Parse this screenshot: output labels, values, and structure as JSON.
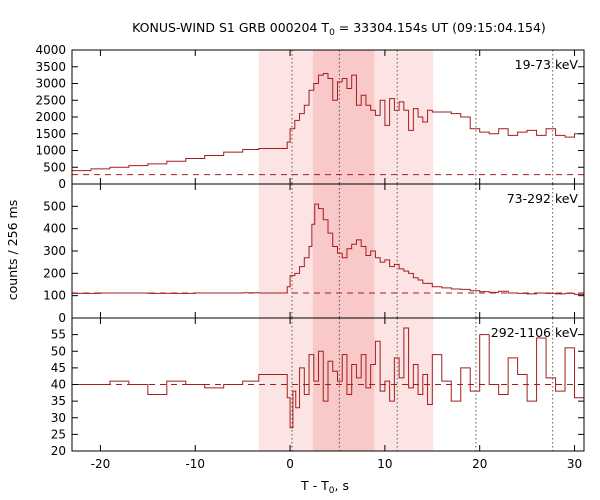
{
  "chart_data": {
    "type": "line",
    "title": "KONUS-WIND S1 GRB 000204 T",
    "title_sub": "0",
    "title_rest": " = 33304.154s UT (09:15:04.154)",
    "xlabel": "T - T",
    "xlabel_sub": "0",
    "xlabel_rest": ", s",
    "ylabel": "counts / 256 ms",
    "xlim": [
      -23,
      31
    ],
    "x_ticks": [
      -20,
      -10,
      0,
      10,
      20,
      30
    ],
    "x_tick_labels": [
      "-20",
      "-10",
      "0",
      "10",
      "20",
      "30"
    ],
    "colors": {
      "series": "#a51c1c",
      "band_outer": "#fde4e4",
      "band_inner": "#f9c9c9"
    },
    "shaded_intervals": [
      {
        "x0": -3.3,
        "x1": 2.4,
        "level": "outer"
      },
      {
        "x0": 2.4,
        "x1": 8.9,
        "level": "inner"
      },
      {
        "x0": 8.9,
        "x1": 15.1,
        "level": "outer"
      }
    ],
    "vertical_markers": [
      0.2,
      5.2,
      11.3,
      19.6,
      27.7
    ],
    "panels": [
      {
        "band_label": "19-73 keV",
        "ylim": [
          0,
          4000
        ],
        "y_ticks": [
          0,
          500,
          1000,
          1500,
          2000,
          2500,
          3000,
          3500,
          4000
        ],
        "y_tick_labels": [
          "0",
          "500",
          "1000",
          "1500",
          "2000",
          "2500",
          "3000",
          "3500",
          "4000"
        ],
        "background_level": 280,
        "series": {
          "x": [
            -23,
            -21,
            -19,
            -17,
            -15,
            -13,
            -11,
            -9,
            -7,
            -5,
            -3.3,
            -0.3,
            0,
            0.5,
            1,
            1.5,
            2,
            2.5,
            3,
            3.5,
            4,
            4.5,
            5,
            5.5,
            6,
            6.5,
            7,
            7.5,
            8,
            8.5,
            9,
            9.5,
            10,
            10.5,
            11,
            11.5,
            12,
            12.5,
            13,
            13.5,
            14,
            14.5,
            15,
            16,
            17,
            18,
            19,
            20,
            21,
            22,
            23,
            24,
            25,
            26,
            27,
            28,
            29,
            30,
            31
          ],
          "y": [
            400,
            450,
            500,
            550,
            600,
            680,
            760,
            850,
            950,
            1030,
            1060,
            1250,
            1650,
            1900,
            2100,
            2350,
            2800,
            3000,
            3250,
            3300,
            3150,
            2500,
            3050,
            3150,
            2850,
            3250,
            2350,
            2650,
            2350,
            2200,
            2050,
            2500,
            1750,
            2550,
            2200,
            2450,
            2200,
            1600,
            2250,
            2000,
            1850,
            2200,
            2150,
            2150,
            2100,
            2000,
            1650,
            1550,
            1500,
            1650,
            1450,
            1550,
            1600,
            1450,
            1650,
            1450,
            1400,
            1500,
            1400
          ]
        }
      },
      {
        "band_label": "73-292 keV",
        "ylim": [
          0,
          600
        ],
        "y_ticks": [
          0,
          100,
          200,
          300,
          400,
          500
        ],
        "y_tick_labels": [
          "0",
          "100",
          "200",
          "300",
          "400",
          "500"
        ],
        "background_level": 112,
        "series": {
          "x": [
            -23,
            -20,
            -15,
            -10,
            -5,
            -3.3,
            -0.3,
            0,
            0.5,
            1,
            1.5,
            2,
            2.3,
            2.6,
            3,
            3.5,
            4,
            4.5,
            5,
            5.5,
            6,
            6.5,
            7,
            7.5,
            8,
            8.5,
            9,
            9.5,
            10,
            10.5,
            11,
            11.5,
            12,
            12.5,
            13,
            13.5,
            14,
            15,
            16,
            17,
            18,
            19,
            20,
            21,
            22,
            23,
            24,
            25,
            26,
            27,
            28,
            29,
            30,
            31
          ],
          "y": [
            110,
            112,
            110,
            112,
            113,
            112,
            140,
            190,
            200,
            230,
            270,
            320,
            420,
            510,
            490,
            440,
            380,
            320,
            290,
            270,
            310,
            330,
            350,
            320,
            280,
            300,
            270,
            250,
            260,
            230,
            240,
            220,
            210,
            200,
            180,
            170,
            155,
            140,
            135,
            130,
            128,
            122,
            118,
            115,
            120,
            112,
            110,
            108,
            112,
            110,
            108,
            110,
            106,
            105
          ]
        }
      },
      {
        "band_label": "292-1106 keV",
        "ylim": [
          20,
          60
        ],
        "y_ticks": [
          20,
          25,
          30,
          35,
          40,
          45,
          50,
          55
        ],
        "y_tick_labels": [
          "20",
          "25",
          "30",
          "35",
          "40",
          "45",
          "50",
          "55"
        ],
        "background_level": 40,
        "series": {
          "x": [
            -23,
            -21,
            -19,
            -17,
            -15,
            -13,
            -11,
            -9,
            -7,
            -5,
            -3.3,
            -0.3,
            0,
            0.3,
            0.6,
            1,
            1.5,
            2,
            2.5,
            3,
            3.5,
            4,
            4.5,
            5,
            5.5,
            6,
            6.5,
            7,
            7.5,
            8,
            8.5,
            9,
            9.5,
            10,
            10.5,
            11,
            11.5,
            12,
            12.5,
            13,
            13.5,
            14,
            14.5,
            15,
            16,
            17,
            18,
            19,
            20,
            21,
            22,
            23,
            24,
            25,
            26,
            27,
            28,
            29,
            30,
            31
          ],
          "y": [
            40,
            40,
            41,
            40,
            37,
            41,
            40,
            39,
            40,
            41,
            43,
            36,
            27,
            38,
            33,
            45,
            37,
            49,
            41,
            50,
            35,
            47,
            44,
            41,
            49,
            37,
            46,
            42,
            49,
            39,
            46,
            53,
            38,
            41,
            35,
            48,
            42,
            57,
            39,
            46,
            37,
            43,
            34,
            49,
            41,
            35,
            45,
            38,
            55,
            40,
            37,
            48,
            43,
            35,
            54,
            42,
            38,
            51,
            36,
            40
          ]
        }
      }
    ]
  }
}
